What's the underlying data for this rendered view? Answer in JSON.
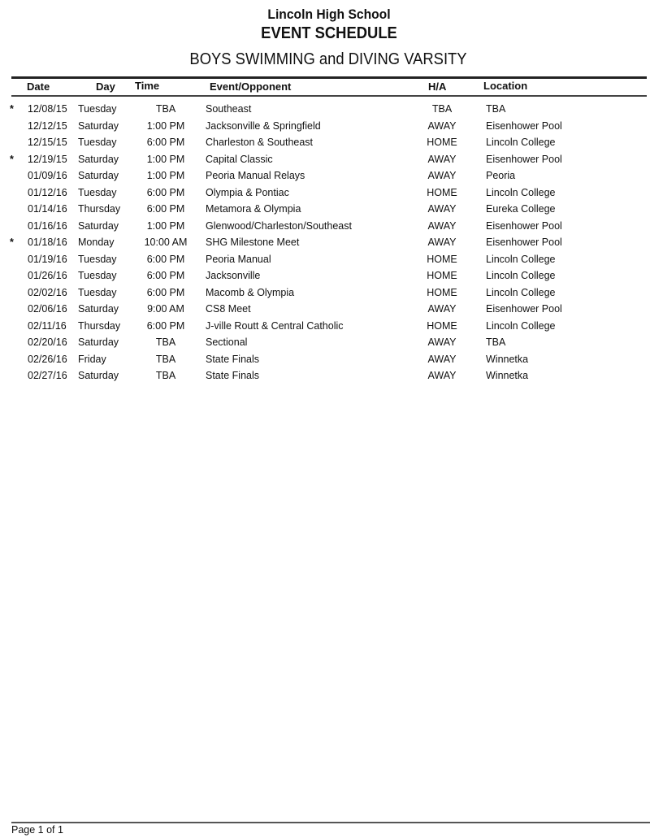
{
  "header": {
    "school": "Lincoln High School",
    "title": "EVENT SCHEDULE",
    "subtitle": "BOYS SWIMMING and DIVING VARSITY"
  },
  "columns": {
    "date": "Date",
    "day": "Day",
    "time": "Time",
    "event": "Event/Opponent",
    "ha": "H/A",
    "location": "Location"
  },
  "rows": [
    {
      "mark": "*",
      "date": "12/08/15",
      "day": "Tuesday",
      "time": "TBA",
      "event": "Southeast",
      "ha": "TBA",
      "location": "TBA"
    },
    {
      "mark": "",
      "date": "12/12/15",
      "day": "Saturday",
      "time": "1:00 PM",
      "event": "Jacksonville & Springfield",
      "ha": "AWAY",
      "location": "Eisenhower Pool"
    },
    {
      "mark": "",
      "date": "12/15/15",
      "day": "Tuesday",
      "time": "6:00 PM",
      "event": "Charleston & Southeast",
      "ha": "HOME",
      "location": "Lincoln College"
    },
    {
      "mark": "*",
      "date": "12/19/15",
      "day": "Saturday",
      "time": "1:00 PM",
      "event": "Capital Classic",
      "ha": "AWAY",
      "location": "Eisenhower Pool"
    },
    {
      "mark": "",
      "date": "01/09/16",
      "day": "Saturday",
      "time": "1:00 PM",
      "event": "Peoria Manual Relays",
      "ha": "AWAY",
      "location": "Peoria"
    },
    {
      "mark": "",
      "date": "01/12/16",
      "day": "Tuesday",
      "time": "6:00 PM",
      "event": "Olympia & Pontiac",
      "ha": "HOME",
      "location": "Lincoln College"
    },
    {
      "mark": "",
      "date": "01/14/16",
      "day": "Thursday",
      "time": "6:00 PM",
      "event": "Metamora & Olympia",
      "ha": "AWAY",
      "location": "Eureka College"
    },
    {
      "mark": "",
      "date": "01/16/16",
      "day": "Saturday",
      "time": "1:00 PM",
      "event": "Glenwood/Charleston/Southeast",
      "ha": "AWAY",
      "location": "Eisenhower Pool"
    },
    {
      "mark": "*",
      "date": "01/18/16",
      "day": "Monday",
      "time": "10:00 AM",
      "event": "SHG Milestone Meet",
      "ha": "AWAY",
      "location": "Eisenhower Pool"
    },
    {
      "mark": "",
      "date": "01/19/16",
      "day": "Tuesday",
      "time": "6:00 PM",
      "event": "Peoria Manual",
      "ha": "HOME",
      "location": "Lincoln College"
    },
    {
      "mark": "",
      "date": "01/26/16",
      "day": "Tuesday",
      "time": "6:00 PM",
      "event": "Jacksonville",
      "ha": "HOME",
      "location": "Lincoln College"
    },
    {
      "mark": "",
      "date": "02/02/16",
      "day": "Tuesday",
      "time": "6:00 PM",
      "event": "Macomb & Olympia",
      "ha": "HOME",
      "location": "Lincoln College"
    },
    {
      "mark": "",
      "date": "02/06/16",
      "day": "Saturday",
      "time": "9:00 AM",
      "event": "CS8 Meet",
      "ha": "AWAY",
      "location": "Eisenhower Pool"
    },
    {
      "mark": "",
      "date": "02/11/16",
      "day": "Thursday",
      "time": "6:00 PM",
      "event": "J-ville Routt & Central Catholic",
      "ha": "HOME",
      "location": "Lincoln College"
    },
    {
      "mark": "",
      "date": "02/20/16",
      "day": "Saturday",
      "time": "TBA",
      "event": "Sectional",
      "ha": "AWAY",
      "location": "TBA"
    },
    {
      "mark": "",
      "date": "02/26/16",
      "day": "Friday",
      "time": "TBA",
      "event": "State Finals",
      "ha": "AWAY",
      "location": "Winnetka"
    },
    {
      "mark": "",
      "date": "02/27/16",
      "day": "Saturday",
      "time": "TBA",
      "event": "State Finals",
      "ha": "AWAY",
      "location": "Winnetka"
    }
  ],
  "footer": {
    "page": "Page 1 of 1"
  }
}
